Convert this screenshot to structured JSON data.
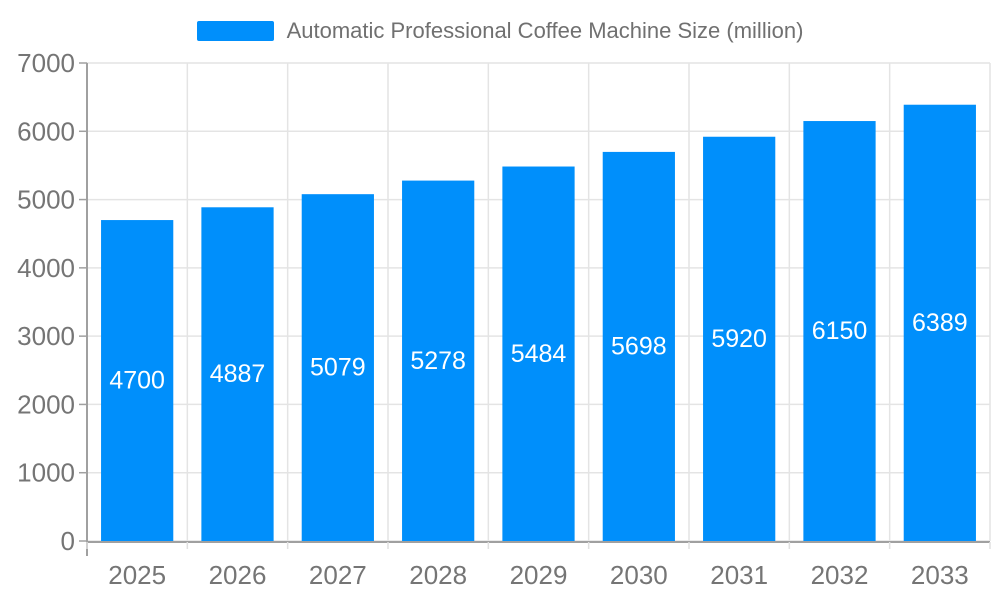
{
  "legend": {
    "label": "Automatic Professional Coffee Machine Size (million)"
  },
  "chart_data": {
    "type": "bar",
    "title": "Automatic Professional Coffee Machine Size (million)",
    "categories": [
      "2025",
      "2026",
      "2027",
      "2028",
      "2029",
      "2030",
      "2031",
      "2032",
      "2033"
    ],
    "values": [
      4700,
      4887,
      5079,
      5278,
      5484,
      5698,
      5920,
      6150,
      6389
    ],
    "xlabel": "",
    "ylabel": "",
    "ylim": [
      0,
      7000
    ],
    "ytick_step": 1000,
    "y_tick_labels": [
      "0",
      "1000",
      "2000",
      "3000",
      "4000",
      "5000",
      "6000",
      "7000"
    ],
    "grid": true,
    "legend_position": "top",
    "data_labels": "inside-center-white",
    "colors": {
      "bar": "#008FFB",
      "grid": "#e4e4e4",
      "axis_line": "#a0a0a0",
      "x_tick": "#e0e0e0",
      "tick_label": "#757575",
      "bar_label": "#ffffff",
      "background": "#ffffff"
    }
  }
}
